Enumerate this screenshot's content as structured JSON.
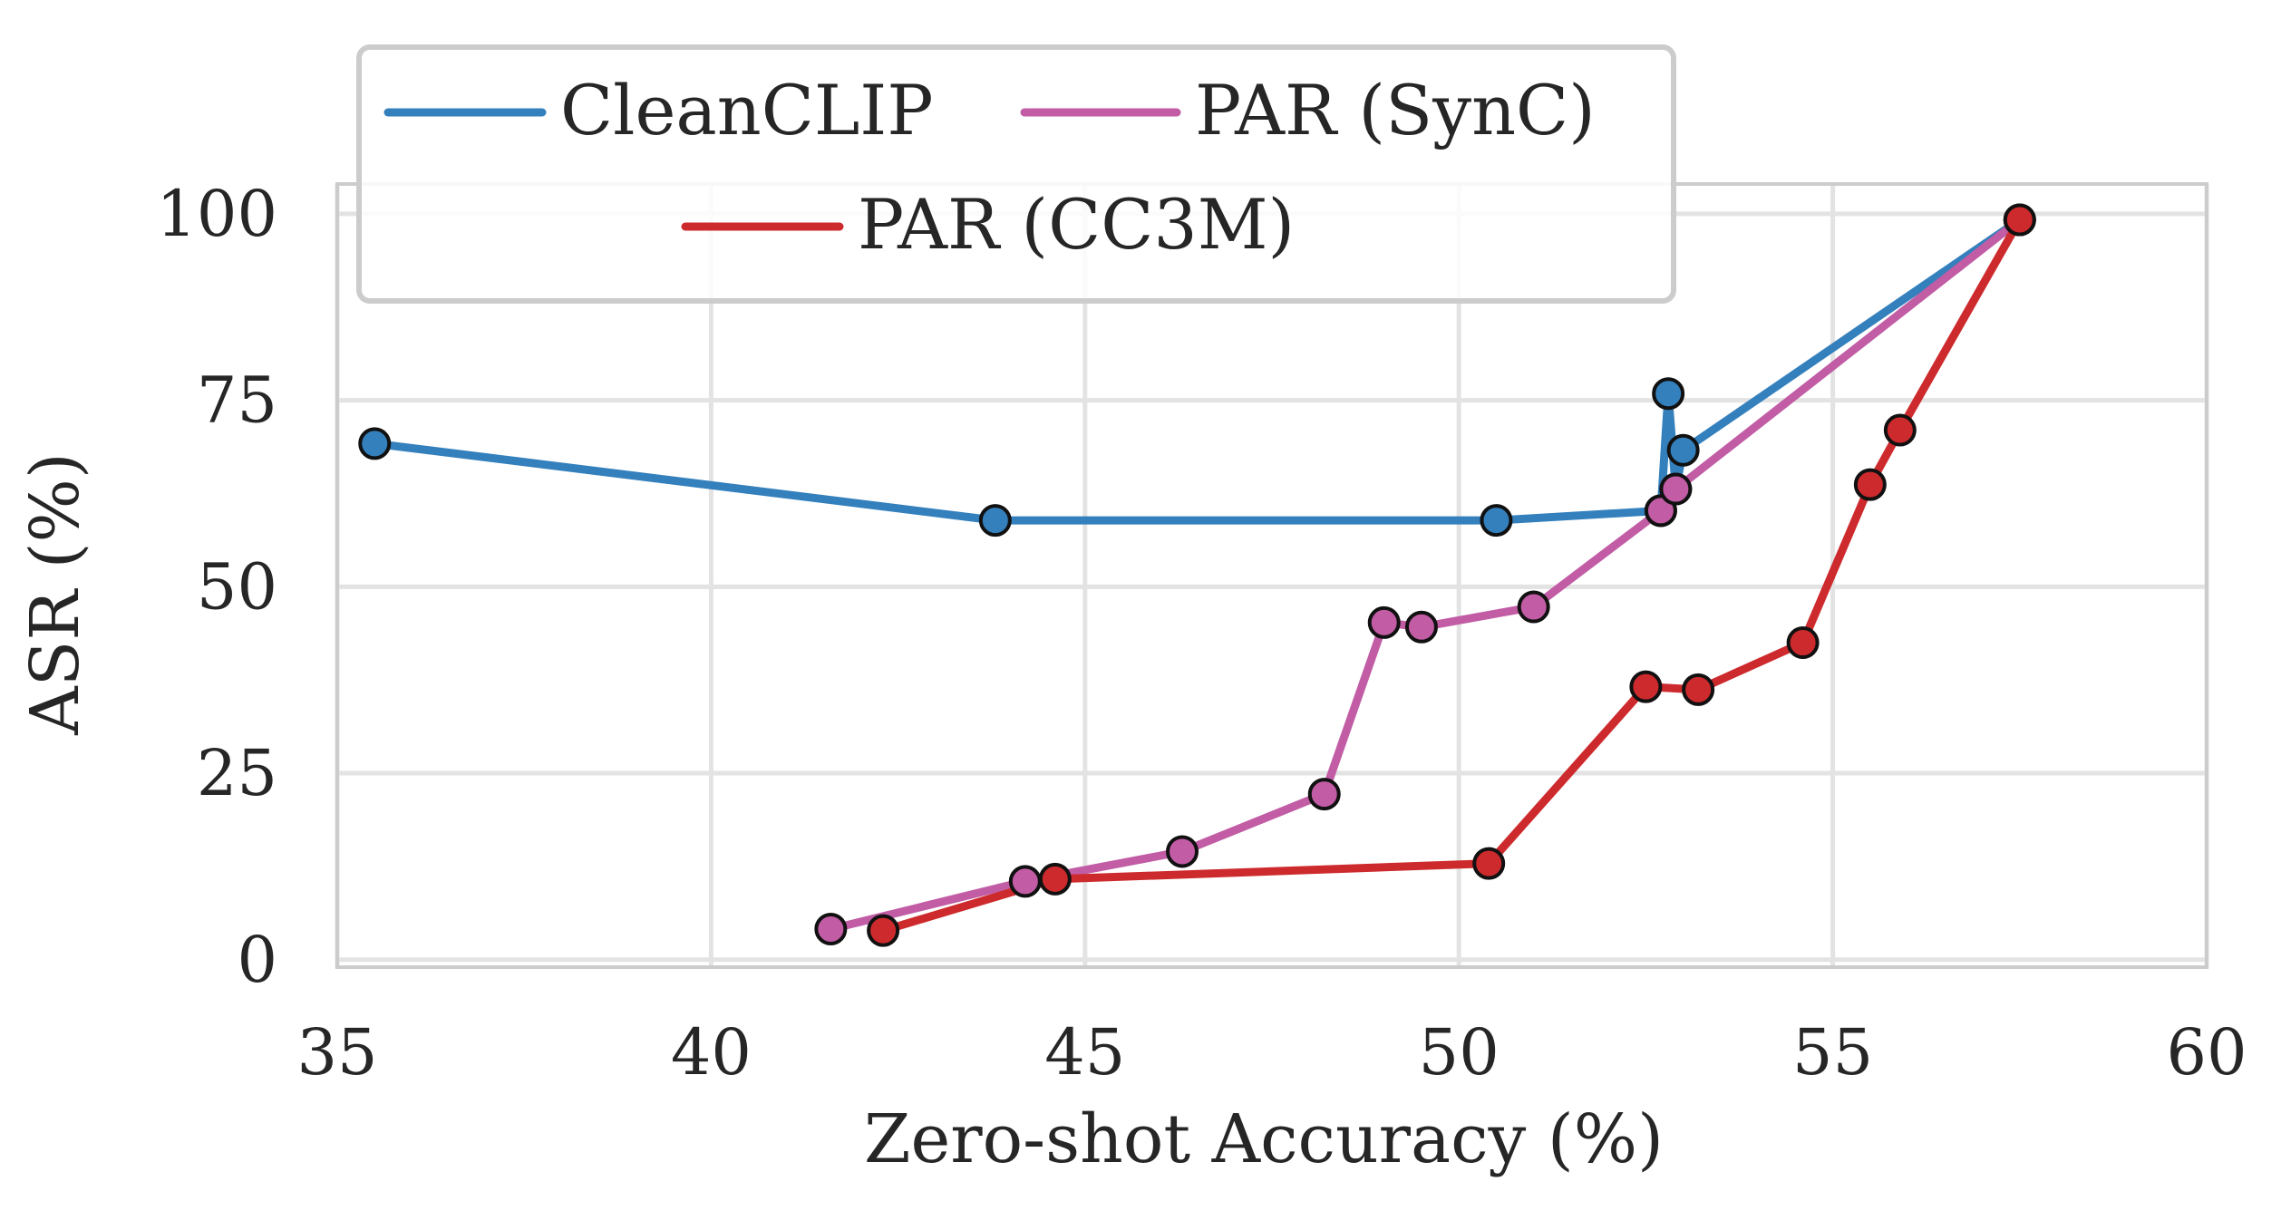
{
  "chart_data": {
    "type": "line",
    "title": "",
    "xlabel": "Zero-shot Accuracy (%)",
    "ylabel": "ASR (%)",
    "xlim": [
      35,
      60
    ],
    "ylim": [
      -1,
      104
    ],
    "xticks": [
      35,
      40,
      45,
      50,
      55,
      60
    ],
    "yticks": [
      0,
      25,
      50,
      75,
      100
    ],
    "grid": true,
    "legend_position": "top-left",
    "legend_columns": 2,
    "series": [
      {
        "name": "CleanCLIP",
        "color": "#3480bd",
        "points": [
          [
            35.5,
            69.2
          ],
          [
            43.8,
            58.9
          ],
          [
            50.5,
            58.9
          ],
          [
            52.7,
            60.2
          ],
          [
            52.8,
            75.9
          ],
          [
            52.9,
            63.1
          ],
          [
            53.0,
            68.3
          ],
          [
            57.5,
            99.2
          ]
        ]
      },
      {
        "name": "PAR (SynC)",
        "color": "#c15ca5",
        "points": [
          [
            41.6,
            4.1
          ],
          [
            44.2,
            10.5
          ],
          [
            46.3,
            14.5
          ],
          [
            48.2,
            22.2
          ],
          [
            49.0,
            45.2
          ],
          [
            49.5,
            44.6
          ],
          [
            51.0,
            47.3
          ],
          [
            52.7,
            60.2
          ],
          [
            52.9,
            63.1
          ],
          [
            57.5,
            99.2
          ]
        ]
      },
      {
        "name": "PAR (CC3M)",
        "color": "#cd2a2d",
        "points": [
          [
            42.3,
            3.9
          ],
          [
            44.6,
            10.8
          ],
          [
            50.4,
            12.9
          ],
          [
            52.5,
            36.6
          ],
          [
            53.2,
            36.2
          ],
          [
            54.6,
            42.5
          ],
          [
            55.5,
            63.7
          ],
          [
            55.9,
            71.0
          ],
          [
            57.5,
            99.2
          ]
        ]
      }
    ]
  }
}
